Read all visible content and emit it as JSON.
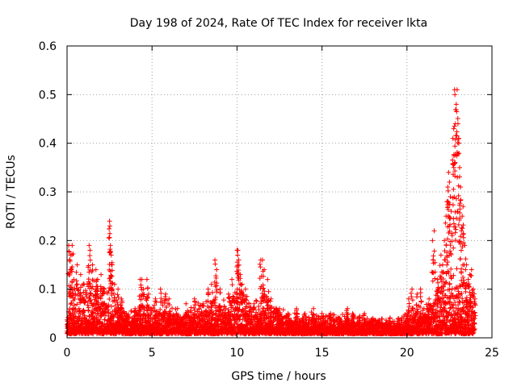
{
  "chart_data": {
    "type": "scatter",
    "title": "Day 198 of 2024, Rate Of TEC Index for receiver lkta",
    "xlabel": "GPS time / hours",
    "ylabel": "ROTI / TECUs",
    "xlim": [
      0,
      25
    ],
    "ylim": [
      0,
      0.6
    ],
    "xticks": [
      0,
      5,
      10,
      15,
      20,
      25
    ],
    "yticks": [
      0,
      0.1,
      0.2,
      0.3,
      0.4,
      0.5,
      0.6
    ],
    "xtick_labels": [
      "0",
      "5",
      "10",
      "15",
      "20",
      "25"
    ],
    "ytick_labels": [
      "0",
      "0.1",
      "0.2",
      "0.3",
      "0.4",
      "0.5",
      "0.6"
    ],
    "grid": true,
    "marker": "plus",
    "color": "#ff0000",
    "series": [
      {
        "points": [
          [
            0.1,
            0.19
          ],
          [
            0.2,
            0.17
          ],
          [
            0.3,
            0.19
          ],
          [
            0.15,
            0.16
          ],
          [
            0.25,
            0.14
          ],
          [
            0.4,
            0.12
          ],
          [
            0.6,
            0.15
          ],
          [
            0.8,
            0.13
          ],
          [
            1.0,
            0.11
          ],
          [
            1.3,
            0.19
          ],
          [
            1.35,
            0.18
          ],
          [
            1.5,
            0.15
          ],
          [
            1.7,
            0.14
          ],
          [
            1.8,
            0.12
          ],
          [
            2.0,
            0.13
          ],
          [
            2.2,
            0.1
          ],
          [
            2.5,
            0.24
          ],
          [
            2.52,
            0.23
          ],
          [
            2.55,
            0.19
          ],
          [
            2.6,
            0.17
          ],
          [
            2.65,
            0.15
          ],
          [
            2.8,
            0.11
          ],
          [
            3.0,
            0.1
          ],
          [
            3.2,
            0.08
          ],
          [
            3.5,
            0.05
          ],
          [
            4.0,
            0.06
          ],
          [
            4.3,
            0.12
          ],
          [
            4.4,
            0.12
          ],
          [
            4.5,
            0.1
          ],
          [
            4.7,
            0.12
          ],
          [
            4.8,
            0.09
          ],
          [
            5.2,
            0.08
          ],
          [
            5.5,
            0.1
          ],
          [
            5.8,
            0.09
          ],
          [
            6.0,
            0.08
          ],
          [
            6.5,
            0.06
          ],
          [
            7.0,
            0.07
          ],
          [
            7.5,
            0.08
          ],
          [
            8.0,
            0.07
          ],
          [
            8.3,
            0.1
          ],
          [
            8.5,
            0.11
          ],
          [
            8.7,
            0.16
          ],
          [
            8.8,
            0.14
          ],
          [
            9.0,
            0.1
          ],
          [
            9.5,
            0.09
          ],
          [
            9.7,
            0.12
          ],
          [
            10.0,
            0.18
          ],
          [
            10.05,
            0.18
          ],
          [
            10.1,
            0.16
          ],
          [
            10.2,
            0.13
          ],
          [
            10.3,
            0.11
          ],
          [
            10.5,
            0.1
          ],
          [
            11.0,
            0.07
          ],
          [
            11.4,
            0.16
          ],
          [
            11.5,
            0.16
          ],
          [
            11.6,
            0.14
          ],
          [
            11.8,
            0.12
          ],
          [
            12.0,
            0.08
          ],
          [
            12.5,
            0.06
          ],
          [
            13.0,
            0.05
          ],
          [
            13.5,
            0.06
          ],
          [
            14.0,
            0.05
          ],
          [
            14.5,
            0.06
          ],
          [
            15.0,
            0.05
          ],
          [
            15.5,
            0.05
          ],
          [
            16.0,
            0.04
          ],
          [
            16.5,
            0.06
          ],
          [
            16.8,
            0.05
          ],
          [
            17.2,
            0.04
          ],
          [
            17.5,
            0.05
          ],
          [
            18.0,
            0.04
          ],
          [
            18.5,
            0.03
          ],
          [
            19.0,
            0.04
          ],
          [
            19.5,
            0.04
          ],
          [
            20.0,
            0.05
          ],
          [
            20.1,
            0.08
          ],
          [
            20.3,
            0.1
          ],
          [
            20.6,
            0.09
          ],
          [
            20.8,
            0.1
          ],
          [
            21.0,
            0.06
          ],
          [
            21.3,
            0.08
          ],
          [
            21.5,
            0.2
          ],
          [
            21.6,
            0.22
          ],
          [
            21.8,
            0.12
          ],
          [
            22.0,
            0.17
          ],
          [
            22.1,
            0.15
          ],
          [
            22.2,
            0.2
          ],
          [
            22.3,
            0.25
          ],
          [
            22.35,
            0.28
          ],
          [
            22.4,
            0.31
          ],
          [
            22.45,
            0.34
          ],
          [
            22.5,
            0.32
          ],
          [
            22.55,
            0.29
          ],
          [
            22.6,
            0.26
          ],
          [
            22.7,
            0.41
          ],
          [
            22.75,
            0.43
          ],
          [
            22.8,
            0.51
          ],
          [
            22.82,
            0.5
          ],
          [
            22.85,
            0.44
          ],
          [
            22.9,
            0.48
          ],
          [
            22.95,
            0.51
          ],
          [
            23.0,
            0.44
          ],
          [
            23.05,
            0.4
          ],
          [
            23.1,
            0.35
          ],
          [
            23.15,
            0.31
          ],
          [
            23.2,
            0.22
          ],
          [
            23.25,
            0.25
          ],
          [
            23.3,
            0.27
          ],
          [
            23.4,
            0.19
          ],
          [
            23.5,
            0.15
          ],
          [
            23.6,
            0.12
          ],
          [
            23.7,
            0.13
          ],
          [
            23.8,
            0.14
          ],
          [
            23.9,
            0.1
          ],
          [
            24.0,
            0.08
          ]
        ],
        "envelope": [
          [
            0.0,
            0.04
          ],
          [
            0.5,
            0.09
          ],
          [
            1.0,
            0.1
          ],
          [
            1.5,
            0.12
          ],
          [
            2.0,
            0.1
          ],
          [
            2.5,
            0.09
          ],
          [
            3.0,
            0.07
          ],
          [
            3.5,
            0.04
          ],
          [
            4.0,
            0.05
          ],
          [
            4.5,
            0.09
          ],
          [
            5.0,
            0.05
          ],
          [
            5.5,
            0.07
          ],
          [
            6.0,
            0.06
          ],
          [
            6.5,
            0.05
          ],
          [
            7.0,
            0.05
          ],
          [
            7.5,
            0.06
          ],
          [
            8.0,
            0.06
          ],
          [
            8.5,
            0.07
          ],
          [
            9.0,
            0.07
          ],
          [
            9.5,
            0.07
          ],
          [
            10.0,
            0.09
          ],
          [
            10.5,
            0.08
          ],
          [
            11.0,
            0.06
          ],
          [
            11.5,
            0.09
          ],
          [
            12.0,
            0.06
          ],
          [
            12.5,
            0.05
          ],
          [
            13.0,
            0.04
          ],
          [
            13.5,
            0.04
          ],
          [
            14.0,
            0.04
          ],
          [
            14.5,
            0.04
          ],
          [
            15.0,
            0.04
          ],
          [
            15.5,
            0.04
          ],
          [
            16.0,
            0.035
          ],
          [
            16.5,
            0.04
          ],
          [
            17.0,
            0.035
          ],
          [
            17.5,
            0.035
          ],
          [
            18.0,
            0.03
          ],
          [
            18.5,
            0.03
          ],
          [
            19.0,
            0.03
          ],
          [
            19.5,
            0.03
          ],
          [
            20.0,
            0.04
          ],
          [
            20.5,
            0.06
          ],
          [
            21.0,
            0.05
          ],
          [
            21.5,
            0.09
          ],
          [
            22.0,
            0.11
          ],
          [
            22.5,
            0.12
          ],
          [
            23.0,
            0.13
          ],
          [
            23.5,
            0.1
          ],
          [
            24.0,
            0.06
          ]
        ]
      }
    ]
  }
}
